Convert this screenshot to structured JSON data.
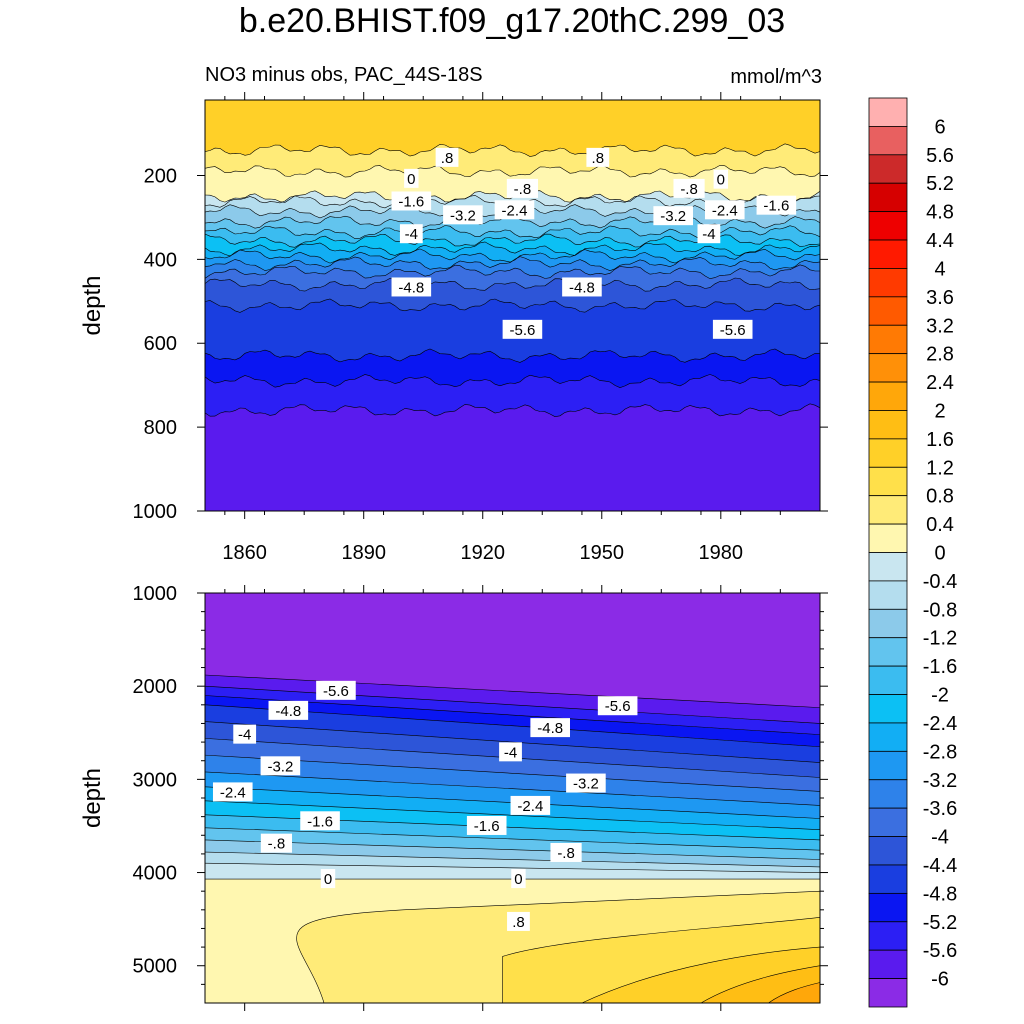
{
  "figure": {
    "title": "b.e20.BHIST.f09_g17.20thC.299_03",
    "subtitle": "NO3 minus obs, PAC_44S-18S",
    "units": "mmol/m^3"
  },
  "colors": {
    "levels": [
      -6,
      -5.6,
      -5.2,
      -4.8,
      -4.4,
      -4,
      -3.6,
      -3.2,
      -2.8,
      -2.4,
      -2,
      -1.6,
      -1.2,
      -0.8,
      -0.4,
      0,
      0.4,
      0.8,
      1.2,
      1.6,
      2,
      2.4,
      2.8,
      3.2,
      3.6,
      4,
      4.4,
      4.8,
      5.2,
      5.6,
      6
    ],
    "fills": [
      "#8b2be6",
      "#5a1bee",
      "#2c1ff4",
      "#0a16f2",
      "#1a3ee0",
      "#2d55d8",
      "#3b6fe0",
      "#2e82ea",
      "#1e98f2",
      "#12aef4",
      "#0cc0f4",
      "#3bbcf0",
      "#62c4ee",
      "#8ccaea",
      "#b4ddee",
      "#c9e6f0",
      "#fff7b0",
      "#ffeb78",
      "#ffe04a",
      "#ffd028",
      "#ffbe14",
      "#ffa70a",
      "#ff9008",
      "#ff7a04",
      "#ff5a00",
      "#ff3a00",
      "#ff1a00",
      "#ee0000",
      "#d60000",
      "#cc2a2a",
      "#e86060",
      "#ffb0b0"
    ],
    "colorbar_labels": [
      "6",
      "5.6",
      "5.2",
      "4.8",
      "4.4",
      "4",
      "3.6",
      "3.2",
      "2.8",
      "2.4",
      "2",
      "1.6",
      "1.2",
      "0.8",
      "0.4",
      "0",
      "-0.4",
      "-0.8",
      "-1.2",
      "-1.6",
      "-2",
      "-2.4",
      "-2.8",
      "-3.2",
      "-3.6",
      "-4",
      "-4.4",
      "-4.8",
      "-5.2",
      "-5.6",
      "-6"
    ]
  },
  "chart_data": [
    {
      "type": "heatmap",
      "panel": "upper",
      "ylabel": "depth",
      "xlabel": "",
      "xlim": [
        1850,
        2005
      ],
      "ylim": [
        1000,
        20
      ],
      "x_ticks": [
        "1860",
        "1890",
        "1920",
        "1950",
        "1980"
      ],
      "x_tick_values": [
        1860,
        1890,
        1920,
        1950,
        1980
      ],
      "y_ticks": [
        "200",
        "400",
        "600",
        "800",
        "1000"
      ],
      "y_tick_values": [
        200,
        400,
        600,
        800,
        1000
      ],
      "contour_depths": [
        {
          "value": 0.8,
          "depth": 140
        },
        {
          "value": 0.4,
          "depth": 190
        },
        {
          "value": 0,
          "depth": 250
        },
        {
          "value": -0.4,
          "depth": 262
        },
        {
          "value": -0.8,
          "depth": 285
        },
        {
          "value": -1.2,
          "depth": 310
        },
        {
          "value": -1.6,
          "depth": 335
        },
        {
          "value": -2,
          "depth": 355
        },
        {
          "value": -2.4,
          "depth": 375
        },
        {
          "value": -2.8,
          "depth": 392
        },
        {
          "value": -3.2,
          "depth": 410
        },
        {
          "value": -3.6,
          "depth": 430
        },
        {
          "value": -4,
          "depth": 460
        },
        {
          "value": -4.4,
          "depth": 510
        },
        {
          "value": -4.8,
          "depth": 630
        },
        {
          "value": -5.2,
          "depth": 690
        },
        {
          "value": -5.6,
          "depth": 760
        },
        {
          "value": -6,
          "depth": 1000
        }
      ],
      "contour_labels": [
        {
          "text": ".8",
          "x": 1911,
          "depth": 158
        },
        {
          "text": ".8",
          "x": 1949,
          "depth": 158
        },
        {
          "text": "0",
          "x": 1902,
          "depth": 208
        },
        {
          "text": "0",
          "x": 1980,
          "depth": 210
        },
        {
          "text": "-.8",
          "x": 1930,
          "depth": 232
        },
        {
          "text": "-.8",
          "x": 1972,
          "depth": 232
        },
        {
          "text": "-1.6",
          "x": 1902,
          "depth": 262
        },
        {
          "text": "-1.6",
          "x": 1994,
          "depth": 272
        },
        {
          "text": "-2.4",
          "x": 1928,
          "depth": 283
        },
        {
          "text": "-2.4",
          "x": 1981,
          "depth": 283
        },
        {
          "text": "-3.2",
          "x": 1915,
          "depth": 295
        },
        {
          "text": "-3.2",
          "x": 1968,
          "depth": 297
        },
        {
          "text": "-4",
          "x": 1902,
          "depth": 340
        },
        {
          "text": "-4",
          "x": 1977,
          "depth": 340
        },
        {
          "text": "-4.8",
          "x": 1902,
          "depth": 467
        },
        {
          "text": "-4.8",
          "x": 1945,
          "depth": 467
        },
        {
          "text": "-5.6",
          "x": 1930,
          "depth": 568
        },
        {
          "text": "-5.6",
          "x": 1983,
          "depth": 568
        }
      ]
    },
    {
      "type": "heatmap",
      "panel": "lower",
      "ylabel": "depth",
      "xlabel": "",
      "xlim": [
        1850,
        2005
      ],
      "ylim": [
        1000,
        5400
      ],
      "y_ticks": [
        "1000",
        "2000",
        "3000",
        "4000",
        "5000"
      ],
      "y_tick_values": [
        1000,
        2000,
        3000,
        4000,
        5000
      ],
      "contour_depths_left_right": [
        {
          "value": -6,
          "left": 1880,
          "right": 2230
        },
        {
          "value": -5.6,
          "left": 2000,
          "right": 2400
        },
        {
          "value": -5.2,
          "left": 2100,
          "right": 2520
        },
        {
          "value": -4.8,
          "left": 2200,
          "right": 2650
        },
        {
          "value": -4.4,
          "left": 2380,
          "right": 2820
        },
        {
          "value": -4,
          "left": 2560,
          "right": 2980
        },
        {
          "value": -3.6,
          "left": 2740,
          "right": 3130
        },
        {
          "value": -3.2,
          "left": 2920,
          "right": 3280
        },
        {
          "value": -2.8,
          "left": 3080,
          "right": 3420
        },
        {
          "value": -2.4,
          "left": 3230,
          "right": 3540
        },
        {
          "value": -2,
          "left": 3380,
          "right": 3650
        },
        {
          "value": -1.6,
          "left": 3520,
          "right": 3760
        },
        {
          "value": -1.2,
          "left": 3650,
          "right": 3860
        },
        {
          "value": -0.8,
          "left": 3780,
          "right": 3940
        },
        {
          "value": -0.4,
          "left": 3900,
          "right": 4000
        },
        {
          "value": 0,
          "left": 4070,
          "right": 4070
        }
      ],
      "contour_labels": [
        {
          "text": "-5.6",
          "x": 1883,
          "depth": 2050
        },
        {
          "text": "-5.6",
          "x": 1954,
          "depth": 2215
        },
        {
          "text": "-4.8",
          "x": 1871,
          "depth": 2265
        },
        {
          "text": "-4.8",
          "x": 1937,
          "depth": 2450
        },
        {
          "text": "-4",
          "x": 1860,
          "depth": 2520
        },
        {
          "text": "-4",
          "x": 1927,
          "depth": 2710
        },
        {
          "text": "-3.2",
          "x": 1869,
          "depth": 2860
        },
        {
          "text": "-3.2",
          "x": 1946,
          "depth": 3045
        },
        {
          "text": "-2.4",
          "x": 1857,
          "depth": 3140
        },
        {
          "text": "-2.4",
          "x": 1932,
          "depth": 3285
        },
        {
          "text": "-1.6",
          "x": 1879,
          "depth": 3450
        },
        {
          "text": "-1.6",
          "x": 1921,
          "depth": 3500
        },
        {
          "text": "-.8",
          "x": 1868,
          "depth": 3690
        },
        {
          "text": "-.8",
          "x": 1941,
          "depth": 3790
        },
        {
          "text": "0",
          "x": 1881,
          "depth": 4070
        },
        {
          "text": "0",
          "x": 1929,
          "depth": 4070
        },
        {
          "text": ".8",
          "x": 1929,
          "depth": 4530
        }
      ]
    }
  ]
}
